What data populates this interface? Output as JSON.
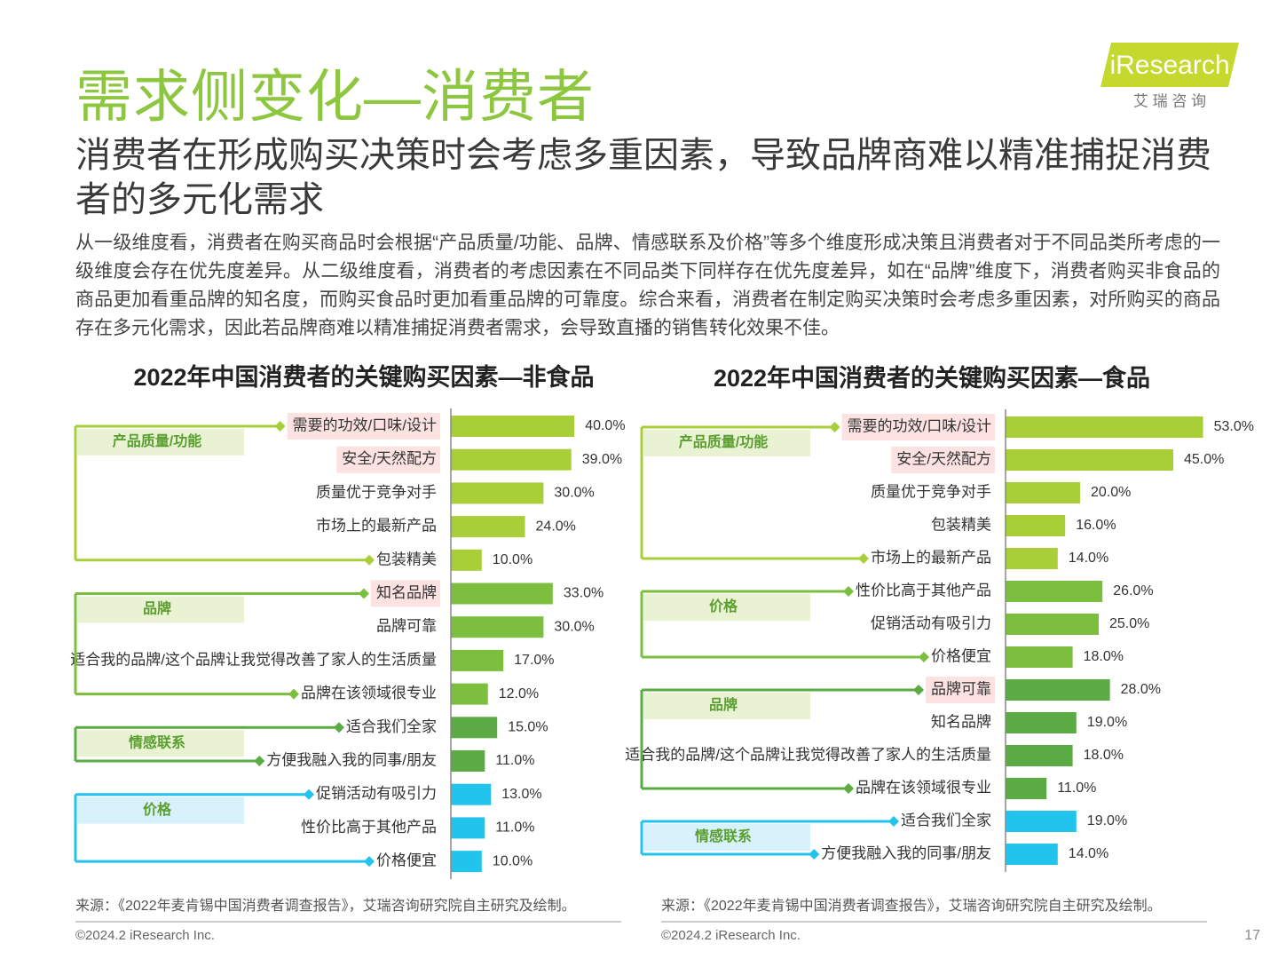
{
  "header": {
    "title": "需求侧变化—消费者",
    "logo": "iResearch",
    "logo_subtitle": "艾 瑞 咨 询"
  },
  "subtitle": "消费者在形成购买决策时会考虑多重因素，导致品牌商难以精准捕捉消费者的多元化需求",
  "body": "从一级维度看，消费者在购买商品时会根据“产品质量/功能、品牌、情感联系及价格”等多个维度形成决策且消费者对于不同品类所考虑的一级维度会存在优先度差异。从二级维度看，消费者的考虑因素在不同品类下同样存在优先度差异，如在“品牌”维度下，消费者购买非食品的商品更加看重品牌的知名度，而购买食品时更加看重品牌的可靠度。综合来看，消费者在制定购买决策时会考虑多重因素，对所购买的商品存在多元化需求，因此若品牌商难以精准捕捉消费者需求，会导致直播的销售转化效果不佳。",
  "chart_data": [
    {
      "type": "bar",
      "title": "2022年中国消费者的关键购买因素—非食品",
      "xlim": [
        0,
        50
      ],
      "groups": [
        {
          "name": "产品质量/功能",
          "color": "#a9cf38",
          "label_background": "#e9f3d3",
          "categories": [
            "需要的功效/口味/设计",
            "安全/天然配方",
            "质量优于竞争对手",
            "市场上的最新产品",
            "包装精美"
          ],
          "values": [
            40,
            39,
            30,
            24,
            10
          ],
          "value_labels": [
            "40.0%",
            "39.0%",
            "30.0%",
            "24.0%",
            "10.0%"
          ],
          "highlighted": [
            true,
            true,
            false,
            false,
            false
          ]
        },
        {
          "name": "品牌",
          "color": "#7cbf3f",
          "label_background": "#e9f3d3",
          "categories": [
            "知名品牌",
            "品牌可靠",
            "适合我的品牌/这个品牌让我觉得改善了家人的生活质量",
            "品牌在该领域很专业"
          ],
          "values": [
            33,
            30,
            17,
            12
          ],
          "value_labels": [
            "33.0%",
            "30.0%",
            "17.0%",
            "12.0%"
          ],
          "highlighted": [
            true,
            false,
            false,
            false
          ]
        },
        {
          "name": "情感联系",
          "color": "#5aab43",
          "label_background": "#e9f3d3",
          "categories": [
            "适合我们全家",
            "方便我融入我的同事/朋友"
          ],
          "values": [
            15,
            11
          ],
          "value_labels": [
            "15.0%",
            "11.0%"
          ],
          "highlighted": [
            false,
            false
          ]
        },
        {
          "name": "价格",
          "color": "#22c4ee",
          "label_background": "#d8f2fb",
          "categories": [
            "促销活动有吸引力",
            "性价比高于其他产品",
            "价格便宜"
          ],
          "values": [
            13,
            11,
            10
          ],
          "value_labels": [
            "13.0%",
            "11.0%",
            "10.0%"
          ],
          "highlighted": [
            false,
            false,
            false
          ]
        }
      ]
    },
    {
      "type": "bar",
      "title": "2022年中国消费者的关键购买因素—食品",
      "xlim": [
        0,
        60
      ],
      "groups": [
        {
          "name": "产品质量/功能",
          "color": "#a9cf38",
          "label_background": "#e9f3d3",
          "categories": [
            "需要的功效/口味/设计",
            "安全/天然配方",
            "质量优于竞争对手",
            "包装精美",
            "市场上的最新产品"
          ],
          "values": [
            53,
            45,
            20,
            16,
            14
          ],
          "value_labels": [
            "53.0%",
            "45.0%",
            "20.0%",
            "16.0%",
            "14.0%"
          ],
          "highlighted": [
            true,
            true,
            false,
            false,
            false
          ]
        },
        {
          "name": "价格",
          "color": "#7cbf3f",
          "label_background": "#e9f3d3",
          "categories": [
            "性价比高于其他产品",
            "促销活动有吸引力",
            "价格便宜"
          ],
          "values": [
            26,
            25,
            18
          ],
          "value_labels": [
            "26.0%",
            "25.0%",
            "18.0%"
          ],
          "highlighted": [
            false,
            false,
            false
          ]
        },
        {
          "name": "品牌",
          "color": "#5aab43",
          "label_background": "#e9f3d3",
          "categories": [
            "品牌可靠",
            "知名品牌",
            "适合我的品牌/这个品牌让我觉得改善了家人的生活质量",
            "品牌在该领域很专业"
          ],
          "values": [
            28,
            19,
            18,
            11
          ],
          "value_labels": [
            "28.0%",
            "19.0%",
            "18.0%",
            "11.0%"
          ],
          "highlighted": [
            true,
            false,
            false,
            false
          ]
        },
        {
          "name": "情感联系",
          "color": "#22c4ee",
          "label_background": "#d8f2fb",
          "categories": [
            "适合我们全家",
            "方便我融入我的同事/朋友"
          ],
          "values": [
            19,
            14
          ],
          "value_labels": [
            "19.0%",
            "14.0%"
          ],
          "highlighted": [
            false,
            false
          ]
        }
      ]
    }
  ],
  "sources": [
    "来源：《2022年麦肯锡中国消费者调查报告》，艾瑞咨询研究院自主研究及绘制。",
    "来源：《2022年麦肯锡中国消费者调查报告》，艾瑞咨询研究院自主研究及绘制。"
  ],
  "footer": {
    "copyright": [
      "©2024.2 iResearch Inc.",
      "©2024.2 iResearch Inc."
    ],
    "page": "17"
  }
}
